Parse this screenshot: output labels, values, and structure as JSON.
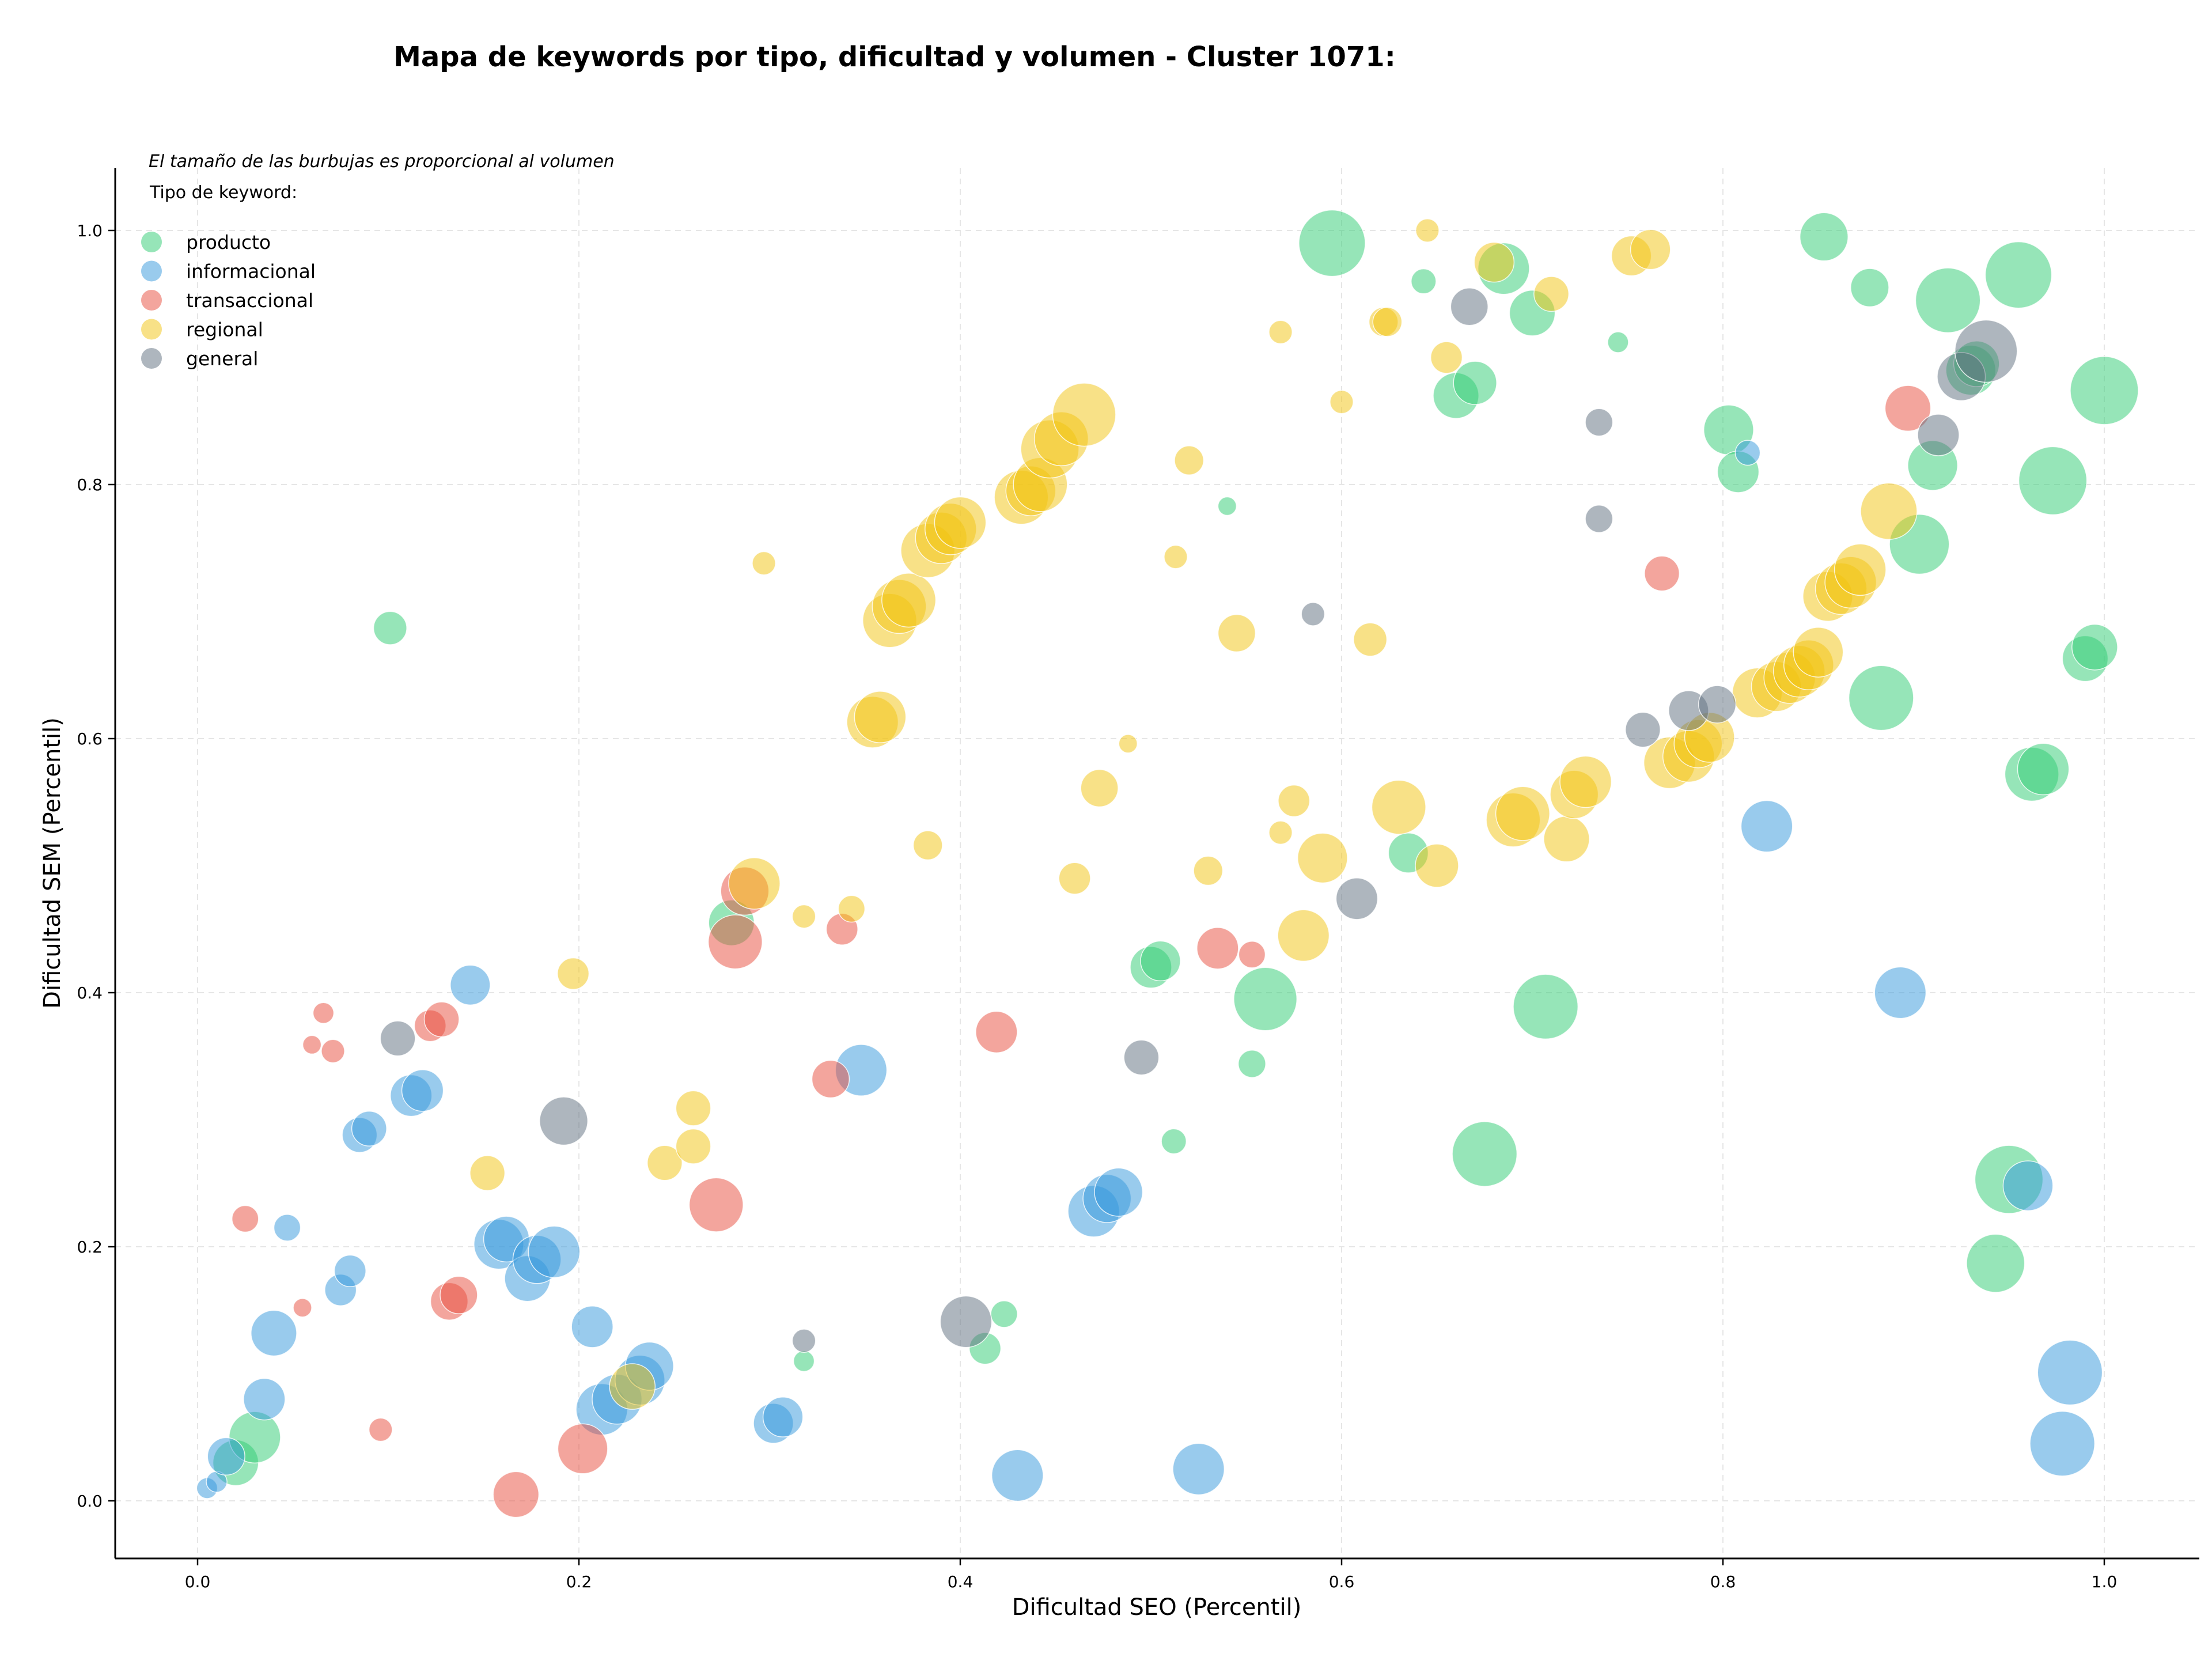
{
  "chart_data": {
    "type": "scatter",
    "title": "Mapa de keywords por tipo, dificultad y volumen - Cluster 1071:",
    "xlabel": "Dificultad SEO (Percentil)",
    "ylabel": "Dificultad SEM (Percentil)",
    "xlim": [
      -0.045,
      1.05
    ],
    "ylim": [
      -0.045,
      1.05
    ],
    "xticks": [
      "0.0",
      "0.2",
      "0.4",
      "0.6",
      "0.8",
      "1.0"
    ],
    "yticks": [
      "0.0",
      "0.2",
      "0.4",
      "0.6",
      "0.8",
      "1.0"
    ],
    "grid": true,
    "note": "El tamaño de las burbujas es proporcional al volumen",
    "legend_title": "Tipo de keyword:",
    "legend_position": "top-left",
    "series": [
      {
        "name": "producto",
        "color": "#2ecc71",
        "points": [
          {
            "x": 0.101,
            "y": 0.687,
            "r": 0.4
          },
          {
            "x": 0.02,
            "y": 0.03,
            "r": 0.55
          },
          {
            "x": 0.03,
            "y": 0.05,
            "r": 0.62
          },
          {
            "x": 0.28,
            "y": 0.455,
            "r": 0.55
          },
          {
            "x": 0.318,
            "y": 0.11,
            "r": 0.25
          },
          {
            "x": 0.423,
            "y": 0.147,
            "r": 0.32
          },
          {
            "x": 0.413,
            "y": 0.12,
            "r": 0.38
          },
          {
            "x": 0.512,
            "y": 0.283,
            "r": 0.3
          },
          {
            "x": 0.5,
            "y": 0.42,
            "r": 0.5
          },
          {
            "x": 0.505,
            "y": 0.425,
            "r": 0.48
          },
          {
            "x": 0.54,
            "y": 0.783,
            "r": 0.22
          },
          {
            "x": 0.553,
            "y": 0.344,
            "r": 0.33
          },
          {
            "x": 0.56,
            "y": 0.395,
            "r": 0.76
          },
          {
            "x": 0.595,
            "y": 0.99,
            "r": 0.8
          },
          {
            "x": 0.635,
            "y": 0.51,
            "r": 0.48
          },
          {
            "x": 0.643,
            "y": 0.96,
            "r": 0.3
          },
          {
            "x": 0.66,
            "y": 0.87,
            "r": 0.55
          },
          {
            "x": 0.67,
            "y": 0.88,
            "r": 0.52
          },
          {
            "x": 0.675,
            "y": 0.273,
            "r": 0.78
          },
          {
            "x": 0.685,
            "y": 0.97,
            "r": 0.62
          },
          {
            "x": 0.7,
            "y": 0.935,
            "r": 0.55
          },
          {
            "x": 0.707,
            "y": 0.389,
            "r": 0.78
          },
          {
            "x": 0.745,
            "y": 0.912,
            "r": 0.25
          },
          {
            "x": 0.803,
            "y": 0.843,
            "r": 0.6
          },
          {
            "x": 0.808,
            "y": 0.81,
            "r": 0.5
          },
          {
            "x": 0.853,
            "y": 0.995,
            "r": 0.58
          },
          {
            "x": 0.877,
            "y": 0.955,
            "r": 0.46
          },
          {
            "x": 0.883,
            "y": 0.632,
            "r": 0.78
          },
          {
            "x": 0.903,
            "y": 0.753,
            "r": 0.72
          },
          {
            "x": 0.91,
            "y": 0.815,
            "r": 0.6
          },
          {
            "x": 0.918,
            "y": 0.945,
            "r": 0.78
          },
          {
            "x": 0.93,
            "y": 0.89,
            "r": 0.6
          },
          {
            "x": 0.933,
            "y": 0.895,
            "r": 0.55
          },
          {
            "x": 0.943,
            "y": 0.187,
            "r": 0.7
          },
          {
            "x": 0.95,
            "y": 0.253,
            "r": 0.82
          },
          {
            "x": 0.955,
            "y": 0.965,
            "r": 0.8
          },
          {
            "x": 0.962,
            "y": 0.572,
            "r": 0.65
          },
          {
            "x": 0.968,
            "y": 0.576,
            "r": 0.62
          },
          {
            "x": 0.973,
            "y": 0.803,
            "r": 0.82
          },
          {
            "x": 0.99,
            "y": 0.663,
            "r": 0.55
          },
          {
            "x": 0.995,
            "y": 0.672,
            "r": 0.55
          },
          {
            "x": 1.0,
            "y": 0.874,
            "r": 0.82
          }
        ]
      },
      {
        "name": "informacional",
        "color": "#3498db",
        "points": [
          {
            "x": 0.005,
            "y": 0.01,
            "r": 0.25
          },
          {
            "x": 0.01,
            "y": 0.015,
            "r": 0.25
          },
          {
            "x": 0.015,
            "y": 0.035,
            "r": 0.45
          },
          {
            "x": 0.035,
            "y": 0.08,
            "r": 0.5
          },
          {
            "x": 0.04,
            "y": 0.132,
            "r": 0.55
          },
          {
            "x": 0.047,
            "y": 0.215,
            "r": 0.32
          },
          {
            "x": 0.075,
            "y": 0.166,
            "r": 0.38
          },
          {
            "x": 0.08,
            "y": 0.181,
            "r": 0.38
          },
          {
            "x": 0.085,
            "y": 0.288,
            "r": 0.42
          },
          {
            "x": 0.09,
            "y": 0.293,
            "r": 0.42
          },
          {
            "x": 0.112,
            "y": 0.319,
            "r": 0.5
          },
          {
            "x": 0.118,
            "y": 0.323,
            "r": 0.5
          },
          {
            "x": 0.143,
            "y": 0.406,
            "r": 0.48
          },
          {
            "x": 0.158,
            "y": 0.202,
            "r": 0.6
          },
          {
            "x": 0.162,
            "y": 0.206,
            "r": 0.55
          },
          {
            "x": 0.173,
            "y": 0.175,
            "r": 0.55
          },
          {
            "x": 0.178,
            "y": 0.19,
            "r": 0.58
          },
          {
            "x": 0.187,
            "y": 0.196,
            "r": 0.62
          },
          {
            "x": 0.207,
            "y": 0.137,
            "r": 0.5
          },
          {
            "x": 0.212,
            "y": 0.072,
            "r": 0.62
          },
          {
            "x": 0.22,
            "y": 0.08,
            "r": 0.6
          },
          {
            "x": 0.232,
            "y": 0.095,
            "r": 0.6
          },
          {
            "x": 0.237,
            "y": 0.106,
            "r": 0.58
          },
          {
            "x": 0.302,
            "y": 0.061,
            "r": 0.48
          },
          {
            "x": 0.307,
            "y": 0.066,
            "r": 0.48
          },
          {
            "x": 0.348,
            "y": 0.339,
            "r": 0.62
          },
          {
            "x": 0.43,
            "y": 0.02,
            "r": 0.62
          },
          {
            "x": 0.47,
            "y": 0.228,
            "r": 0.62
          },
          {
            "x": 0.477,
            "y": 0.238,
            "r": 0.58
          },
          {
            "x": 0.483,
            "y": 0.243,
            "r": 0.58
          },
          {
            "x": 0.525,
            "y": 0.025,
            "r": 0.62
          },
          {
            "x": 0.813,
            "y": 0.825,
            "r": 0.3
          },
          {
            "x": 0.823,
            "y": 0.531,
            "r": 0.62
          },
          {
            "x": 0.893,
            "y": 0.4,
            "r": 0.62
          },
          {
            "x": 0.96,
            "y": 0.248,
            "r": 0.6
          },
          {
            "x": 0.978,
            "y": 0.045,
            "r": 0.78
          },
          {
            "x": 0.982,
            "y": 0.101,
            "r": 0.78
          }
        ]
      },
      {
        "name": "transaccional",
        "color": "#e74c3c",
        "points": [
          {
            "x": 0.025,
            "y": 0.222,
            "r": 0.32
          },
          {
            "x": 0.055,
            "y": 0.152,
            "r": 0.22
          },
          {
            "x": 0.06,
            "y": 0.359,
            "r": 0.22
          },
          {
            "x": 0.066,
            "y": 0.384,
            "r": 0.25
          },
          {
            "x": 0.071,
            "y": 0.354,
            "r": 0.28
          },
          {
            "x": 0.096,
            "y": 0.056,
            "r": 0.28
          },
          {
            "x": 0.122,
            "y": 0.374,
            "r": 0.38
          },
          {
            "x": 0.128,
            "y": 0.379,
            "r": 0.42
          },
          {
            "x": 0.132,
            "y": 0.157,
            "r": 0.45
          },
          {
            "x": 0.137,
            "y": 0.162,
            "r": 0.45
          },
          {
            "x": 0.167,
            "y": 0.005,
            "r": 0.55
          },
          {
            "x": 0.202,
            "y": 0.041,
            "r": 0.6
          },
          {
            "x": 0.272,
            "y": 0.233,
            "r": 0.65
          },
          {
            "x": 0.282,
            "y": 0.44,
            "r": 0.65
          },
          {
            "x": 0.287,
            "y": 0.48,
            "r": 0.58
          },
          {
            "x": 0.338,
            "y": 0.45,
            "r": 0.38
          },
          {
            "x": 0.332,
            "y": 0.332,
            "r": 0.45
          },
          {
            "x": 0.419,
            "y": 0.369,
            "r": 0.5
          },
          {
            "x": 0.535,
            "y": 0.435,
            "r": 0.5
          },
          {
            "x": 0.553,
            "y": 0.43,
            "r": 0.32
          },
          {
            "x": 0.768,
            "y": 0.73,
            "r": 0.42
          },
          {
            "x": 0.897,
            "y": 0.86,
            "r": 0.55
          }
        ]
      },
      {
        "name": "regional",
        "color": "#f1c40f",
        "points": [
          {
            "x": 0.152,
            "y": 0.258,
            "r": 0.42
          },
          {
            "x": 0.197,
            "y": 0.415,
            "r": 0.38
          },
          {
            "x": 0.228,
            "y": 0.09,
            "r": 0.55
          },
          {
            "x": 0.245,
            "y": 0.266,
            "r": 0.42
          },
          {
            "x": 0.26,
            "y": 0.279,
            "r": 0.42
          },
          {
            "x": 0.26,
            "y": 0.309,
            "r": 0.42
          },
          {
            "x": 0.292,
            "y": 0.486,
            "r": 0.62
          },
          {
            "x": 0.297,
            "y": 0.738,
            "r": 0.28
          },
          {
            "x": 0.318,
            "y": 0.46,
            "r": 0.28
          },
          {
            "x": 0.343,
            "y": 0.466,
            "r": 0.32
          },
          {
            "x": 0.354,
            "y": 0.613,
            "r": 0.62
          },
          {
            "x": 0.358,
            "y": 0.617,
            "r": 0.62
          },
          {
            "x": 0.363,
            "y": 0.693,
            "r": 0.65
          },
          {
            "x": 0.368,
            "y": 0.704,
            "r": 0.65
          },
          {
            "x": 0.373,
            "y": 0.709,
            "r": 0.65
          },
          {
            "x": 0.383,
            "y": 0.516,
            "r": 0.35
          },
          {
            "x": 0.383,
            "y": 0.748,
            "r": 0.65
          },
          {
            "x": 0.39,
            "y": 0.758,
            "r": 0.62
          },
          {
            "x": 0.395,
            "y": 0.765,
            "r": 0.62
          },
          {
            "x": 0.4,
            "y": 0.77,
            "r": 0.62
          },
          {
            "x": 0.432,
            "y": 0.79,
            "r": 0.65
          },
          {
            "x": 0.437,
            "y": 0.795,
            "r": 0.6
          },
          {
            "x": 0.442,
            "y": 0.8,
            "r": 0.65
          },
          {
            "x": 0.447,
            "y": 0.828,
            "r": 0.7
          },
          {
            "x": 0.453,
            "y": 0.836,
            "r": 0.65
          },
          {
            "x": 0.46,
            "y": 0.49,
            "r": 0.38
          },
          {
            "x": 0.465,
            "y": 0.855,
            "r": 0.76
          },
          {
            "x": 0.473,
            "y": 0.561,
            "r": 0.45
          },
          {
            "x": 0.488,
            "y": 0.596,
            "r": 0.22
          },
          {
            "x": 0.513,
            "y": 0.743,
            "r": 0.28
          },
          {
            "x": 0.52,
            "y": 0.819,
            "r": 0.35
          },
          {
            "x": 0.53,
            "y": 0.496,
            "r": 0.35
          },
          {
            "x": 0.545,
            "y": 0.683,
            "r": 0.45
          },
          {
            "x": 0.568,
            "y": 0.92,
            "r": 0.28
          },
          {
            "x": 0.568,
            "y": 0.526,
            "r": 0.28
          },
          {
            "x": 0.575,
            "y": 0.551,
            "r": 0.38
          },
          {
            "x": 0.58,
            "y": 0.445,
            "r": 0.62
          },
          {
            "x": 0.59,
            "y": 0.506,
            "r": 0.6
          },
          {
            "x": 0.6,
            "y": 0.865,
            "r": 0.28
          },
          {
            "x": 0.615,
            "y": 0.678,
            "r": 0.4
          },
          {
            "x": 0.622,
            "y": 0.928,
            "r": 0.35
          },
          {
            "x": 0.624,
            "y": 0.928,
            "r": 0.35
          },
          {
            "x": 0.63,
            "y": 0.546,
            "r": 0.65
          },
          {
            "x": 0.645,
            "y": 1.0,
            "r": 0.28
          },
          {
            "x": 0.65,
            "y": 0.5,
            "r": 0.52
          },
          {
            "x": 0.655,
            "y": 0.9,
            "r": 0.38
          },
          {
            "x": 0.68,
            "y": 0.975,
            "r": 0.48
          },
          {
            "x": 0.69,
            "y": 0.536,
            "r": 0.65
          },
          {
            "x": 0.695,
            "y": 0.541,
            "r": 0.65
          },
          {
            "x": 0.71,
            "y": 0.95,
            "r": 0.42
          },
          {
            "x": 0.718,
            "y": 0.521,
            "r": 0.55
          },
          {
            "x": 0.722,
            "y": 0.556,
            "r": 0.58
          },
          {
            "x": 0.728,
            "y": 0.566,
            "r": 0.62
          },
          {
            "x": 0.752,
            "y": 0.98,
            "r": 0.48
          },
          {
            "x": 0.762,
            "y": 0.985,
            "r": 0.48
          },
          {
            "x": 0.772,
            "y": 0.581,
            "r": 0.62
          },
          {
            "x": 0.782,
            "y": 0.586,
            "r": 0.62
          },
          {
            "x": 0.787,
            "y": 0.596,
            "r": 0.58
          },
          {
            "x": 0.793,
            "y": 0.601,
            "r": 0.6
          },
          {
            "x": 0.818,
            "y": 0.636,
            "r": 0.6
          },
          {
            "x": 0.828,
            "y": 0.641,
            "r": 0.6
          },
          {
            "x": 0.835,
            "y": 0.648,
            "r": 0.62
          },
          {
            "x": 0.84,
            "y": 0.653,
            "r": 0.62
          },
          {
            "x": 0.845,
            "y": 0.658,
            "r": 0.6
          },
          {
            "x": 0.85,
            "y": 0.668,
            "r": 0.6
          },
          {
            "x": 0.855,
            "y": 0.712,
            "r": 0.6
          },
          {
            "x": 0.862,
            "y": 0.718,
            "r": 0.62
          },
          {
            "x": 0.867,
            "y": 0.723,
            "r": 0.62
          },
          {
            "x": 0.872,
            "y": 0.733,
            "r": 0.62
          },
          {
            "x": 0.887,
            "y": 0.779,
            "r": 0.68
          }
        ]
      },
      {
        "name": "general",
        "color": "#5d6d7e",
        "points": [
          {
            "x": 0.105,
            "y": 0.364,
            "r": 0.42
          },
          {
            "x": 0.192,
            "y": 0.299,
            "r": 0.58
          },
          {
            "x": 0.318,
            "y": 0.126,
            "r": 0.28
          },
          {
            "x": 0.403,
            "y": 0.141,
            "r": 0.62
          },
          {
            "x": 0.495,
            "y": 0.349,
            "r": 0.42
          },
          {
            "x": 0.585,
            "y": 0.698,
            "r": 0.28
          },
          {
            "x": 0.608,
            "y": 0.474,
            "r": 0.5
          },
          {
            "x": 0.667,
            "y": 0.94,
            "r": 0.45
          },
          {
            "x": 0.735,
            "y": 0.849,
            "r": 0.33
          },
          {
            "x": 0.735,
            "y": 0.773,
            "r": 0.33
          },
          {
            "x": 0.758,
            "y": 0.607,
            "r": 0.42
          },
          {
            "x": 0.782,
            "y": 0.622,
            "r": 0.48
          },
          {
            "x": 0.797,
            "y": 0.627,
            "r": 0.45
          },
          {
            "x": 0.913,
            "y": 0.839,
            "r": 0.5
          },
          {
            "x": 0.925,
            "y": 0.885,
            "r": 0.58
          },
          {
            "x": 0.938,
            "y": 0.905,
            "r": 0.75
          }
        ]
      }
    ]
  }
}
